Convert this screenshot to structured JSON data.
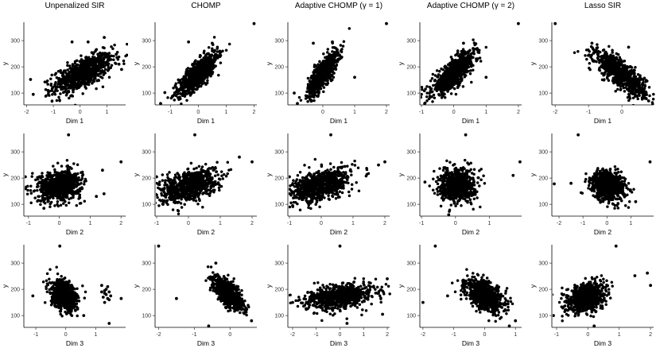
{
  "chart_data": [
    {
      "type": "scatter",
      "title": "Unpenalized SIR",
      "xlabel": "Dim 1",
      "ylabel": "y",
      "xlim": [
        -2.1,
        1.7
      ],
      "ylim": [
        55,
        370
      ],
      "xticks": [
        -2,
        -1,
        0,
        1
      ],
      "yticks": [
        100,
        200,
        300
      ],
      "cloud": {
        "slope": 45,
        "intercept": 170,
        "sd": 28,
        "xmean": 0.1,
        "xsd": 0.55,
        "n": 800
      },
      "points": [
        [
          -1.85,
          152
        ],
        [
          -1.75,
          95
        ],
        [
          -1.2,
          110
        ],
        [
          -0.3,
          295
        ],
        [
          0.3,
          295
        ],
        [
          0.9,
          312
        ],
        [
          1.35,
          248
        ],
        [
          1.45,
          210
        ],
        [
          1.55,
          190
        ]
      ]
    },
    {
      "type": "scatter",
      "title": "CHOMP",
      "xlabel": "Dim 1",
      "ylabel": "y",
      "xlim": [
        -1.55,
        2.1
      ],
      "ylim": [
        55,
        370
      ],
      "xticks": [
        -1,
        0,
        1,
        2
      ],
      "yticks": [
        100,
        200,
        300
      ],
      "cloud": {
        "slope": 90,
        "intercept": 175,
        "sd": 25,
        "xmean": 0.0,
        "xsd": 0.35,
        "n": 800
      },
      "points": [
        [
          2.0,
          365
        ],
        [
          -1.35,
          60
        ],
        [
          -1.2,
          102
        ],
        [
          -0.35,
          295
        ],
        [
          -0.9,
          90
        ],
        [
          0.5,
          290
        ]
      ]
    },
    {
      "type": "scatter",
      "title": "Adaptive CHOMP (γ = 1)",
      "xlabel": "Dim 1",
      "ylabel": "y",
      "xlim": [
        -1.1,
        2.1
      ],
      "ylim": [
        55,
        370
      ],
      "xticks": [
        0,
        1,
        2
      ],
      "yticks": [
        100,
        200,
        300
      ],
      "cloud": {
        "slope": 140,
        "intercept": 175,
        "sd": 25,
        "xmean": 0.0,
        "xsd": 0.23,
        "n": 800
      },
      "points": [
        [
          2.0,
          365
        ],
        [
          1.0,
          160
        ],
        [
          -0.8,
          60
        ],
        [
          -0.9,
          100
        ],
        [
          -0.3,
          290
        ],
        [
          0.3,
          295
        ]
      ]
    },
    {
      "type": "scatter",
      "title": "Adaptive CHOMP (γ = 2)",
      "xlabel": "Dim 1",
      "ylabel": "y",
      "xlim": [
        -1.05,
        2.1
      ],
      "ylim": [
        55,
        370
      ],
      "xticks": [
        -1,
        0,
        1,
        2
      ],
      "yticks": [
        100,
        200,
        300
      ],
      "cloud": {
        "slope": 95,
        "intercept": 175,
        "sd": 25,
        "xmean": 0.0,
        "xsd": 0.33,
        "n": 800
      },
      "points": [
        [
          2.0,
          365
        ],
        [
          1.0,
          160
        ],
        [
          -0.9,
          60
        ],
        [
          -1.0,
          95
        ],
        [
          0.3,
          290
        ],
        [
          0.6,
          270
        ]
      ]
    },
    {
      "type": "scatter",
      "title": "Lasso SIR",
      "xlabel": "Dim 1",
      "ylabel": "y",
      "xlim": [
        -2.1,
        0.95
      ],
      "ylim": [
        55,
        370
      ],
      "xticks": [
        -2,
        -1,
        0
      ],
      "yticks": [
        100,
        200,
        300
      ],
      "cloud": {
        "slope": -85,
        "intercept": 170,
        "sd": 25,
        "xmean": -0.05,
        "xsd": 0.38,
        "n": 800
      },
      "points": [
        [
          -2.0,
          365
        ],
        [
          0.8,
          70
        ],
        [
          0.7,
          95
        ],
        [
          -0.9,
          290
        ],
        [
          0.2,
          275
        ]
      ]
    },
    {
      "type": "scatter",
      "title": "",
      "xlabel": "Dim 2",
      "ylabel": "y",
      "xlim": [
        -1.15,
        2.15
      ],
      "ylim": [
        55,
        370
      ],
      "xticks": [
        -1,
        0,
        1,
        2
      ],
      "yticks": [
        100,
        200,
        300
      ],
      "cloud": {
        "slope": 12,
        "intercept": 172,
        "sd": 28,
        "xmean": 0.0,
        "xsd": 0.35,
        "n": 800
      },
      "points": [
        [
          0.3,
          365
        ],
        [
          2.0,
          262
        ],
        [
          1.4,
          230
        ],
        [
          1.45,
          140
        ],
        [
          1.2,
          130
        ],
        [
          -1.1,
          205
        ],
        [
          -0.5,
          85
        ]
      ]
    },
    {
      "type": "scatter",
      "title": "",
      "xlabel": "Dim 2",
      "ylabel": "y",
      "xlim": [
        -1.05,
        2.15
      ],
      "ylim": [
        55,
        370
      ],
      "xticks": [
        -1,
        0,
        1,
        2
      ],
      "yticks": [
        100,
        200,
        300
      ],
      "cloud": {
        "slope": 30,
        "intercept": 172,
        "sd": 28,
        "xmean": 0.0,
        "xsd": 0.45,
        "n": 800
      },
      "points": [
        [
          0.2,
          365
        ],
        [
          2.0,
          262
        ],
        [
          1.6,
          280
        ],
        [
          -0.8,
          100
        ],
        [
          -1.0,
          205
        ]
      ]
    },
    {
      "type": "scatter",
      "title": "",
      "xlabel": "Dim 2",
      "ylabel": "y",
      "xlim": [
        -1.05,
        2.15
      ],
      "ylim": [
        55,
        370
      ],
      "xticks": [
        -1,
        0,
        1,
        2
      ],
      "yticks": [
        100,
        200,
        300
      ],
      "cloud": {
        "slope": 32,
        "intercept": 172,
        "sd": 28,
        "xmean": 0.0,
        "xsd": 0.45,
        "n": 800
      },
      "points": [
        [
          0.3,
          365
        ],
        [
          2.0,
          262
        ],
        [
          1.8,
          250
        ],
        [
          -0.9,
          95
        ],
        [
          -1.0,
          205
        ]
      ]
    },
    {
      "type": "scatter",
      "title": "",
      "xlabel": "Dim 2",
      "ylabel": "y",
      "xlim": [
        -1.05,
        1.95
      ],
      "ylim": [
        55,
        370
      ],
      "xticks": [
        -1,
        0,
        1
      ],
      "yticks": [
        100,
        200,
        300
      ],
      "cloud": {
        "slope": 5,
        "intercept": 172,
        "sd": 30,
        "xmean": 0.05,
        "xsd": 0.25,
        "n": 800
      },
      "points": [
        [
          0.3,
          365
        ],
        [
          1.9,
          262
        ],
        [
          1.7,
          210
        ],
        [
          -0.9,
          185
        ],
        [
          -0.2,
          60
        ]
      ]
    },
    {
      "type": "scatter",
      "title": "",
      "xlabel": "Dim 2",
      "ylabel": "y",
      "xlim": [
        -2.3,
        1.95
      ],
      "ylim": [
        55,
        370
      ],
      "xticks": [
        -2,
        -1,
        0,
        1
      ],
      "yticks": [
        100,
        200,
        300
      ],
      "cloud": {
        "slope": -15,
        "intercept": 172,
        "sd": 28,
        "xmean": 0.05,
        "xsd": 0.35,
        "n": 800
      },
      "points": [
        [
          -1.2,
          365
        ],
        [
          -2.2,
          178
        ],
        [
          -1.5,
          180
        ],
        [
          1.8,
          262
        ],
        [
          1.2,
          110
        ]
      ]
    },
    {
      "type": "scatter",
      "title": "",
      "xlabel": "Dim 3",
      "ylabel": "y",
      "xlim": [
        -1.4,
        2.0
      ],
      "ylim": [
        55,
        370
      ],
      "xticks": [
        -1,
        0,
        1
      ],
      "yticks": [
        100,
        200,
        300
      ],
      "cloud": {
        "slope": -40,
        "intercept": 172,
        "sd": 26,
        "xmean": -0.05,
        "xsd": 0.22,
        "n": 700
      },
      "points": [
        [
          -0.2,
          365
        ],
        [
          1.2,
          215
        ],
        [
          1.3,
          195
        ],
        [
          1.35,
          180
        ],
        [
          1.4,
          165
        ],
        [
          1.25,
          170
        ],
        [
          1.3,
          150
        ],
        [
          1.4,
          210
        ],
        [
          1.45,
          190
        ],
        [
          1.5,
          175
        ],
        [
          1.35,
          200
        ],
        [
          1.45,
          160
        ],
        [
          1.3,
          185
        ],
        [
          1.2,
          190
        ],
        [
          1.85,
          165
        ],
        [
          1.45,
          70
        ],
        [
          -1.1,
          175
        ],
        [
          0.6,
          100
        ]
      ]
    },
    {
      "type": "scatter",
      "title": "",
      "xlabel": "Dim 3",
      "ylabel": "y",
      "xlim": [
        -2.1,
        0.75
      ],
      "ylim": [
        55,
        370
      ],
      "xticks": [
        -2,
        -1,
        0
      ],
      "yticks": [
        100,
        200,
        300
      ],
      "cloud": {
        "slope": -100,
        "intercept": 180,
        "sd": 22,
        "xmean": -0.05,
        "xsd": 0.2,
        "n": 800
      },
      "points": [
        [
          -2.0,
          365
        ],
        [
          -1.5,
          165
        ],
        [
          -0.6,
          60
        ],
        [
          0.6,
          80
        ],
        [
          -0.4,
          300
        ]
      ]
    },
    {
      "type": "scatter",
      "title": "",
      "xlabel": "Dim 3",
      "ylabel": "y",
      "xlim": [
        -2.2,
        2.1
      ],
      "ylim": [
        55,
        370
      ],
      "xticks": [
        -2,
        -1,
        0,
        1,
        2
      ],
      "yticks": [
        100,
        200,
        300
      ],
      "cloud": {
        "slope": 12,
        "intercept": 172,
        "sd": 22,
        "xmean": 0.0,
        "xsd": 0.7,
        "n": 800
      },
      "points": [
        [
          0.0,
          365
        ],
        [
          2.0,
          240
        ],
        [
          -2.0,
          150
        ],
        [
          0.3,
          70
        ],
        [
          1.8,
          105
        ]
      ]
    },
    {
      "type": "scatter",
      "title": "",
      "xlabel": "Dim 3",
      "ylabel": "y",
      "xlim": [
        -2.1,
        1.2
      ],
      "ylim": [
        55,
        370
      ],
      "xticks": [
        -2,
        -1,
        0,
        1
      ],
      "yticks": [
        100,
        200,
        300
      ],
      "cloud": {
        "slope": -45,
        "intercept": 175,
        "sd": 26,
        "xmean": 0.0,
        "xsd": 0.3,
        "n": 800
      },
      "points": [
        [
          -1.6,
          365
        ],
        [
          -2.0,
          150
        ],
        [
          -1.2,
          175
        ],
        [
          1.0,
          80
        ],
        [
          0.8,
          60
        ]
      ]
    },
    {
      "type": "scatter",
      "title": "",
      "xlabel": "Dim 3",
      "ylabel": "y",
      "xlim": [
        -1.15,
        2.1
      ],
      "ylim": [
        55,
        370
      ],
      "xticks": [
        -1,
        0,
        1,
        2
      ],
      "yticks": [
        100,
        200,
        300
      ],
      "cloud": {
        "slope": 25,
        "intercept": 172,
        "sd": 26,
        "xmean": -0.05,
        "xsd": 0.3,
        "n": 800
      },
      "points": [
        [
          0.9,
          365
        ],
        [
          1.9,
          262
        ],
        [
          1.5,
          252
        ],
        [
          2.0,
          215
        ],
        [
          -1.1,
          100
        ],
        [
          0.2,
          60
        ]
      ]
    }
  ]
}
